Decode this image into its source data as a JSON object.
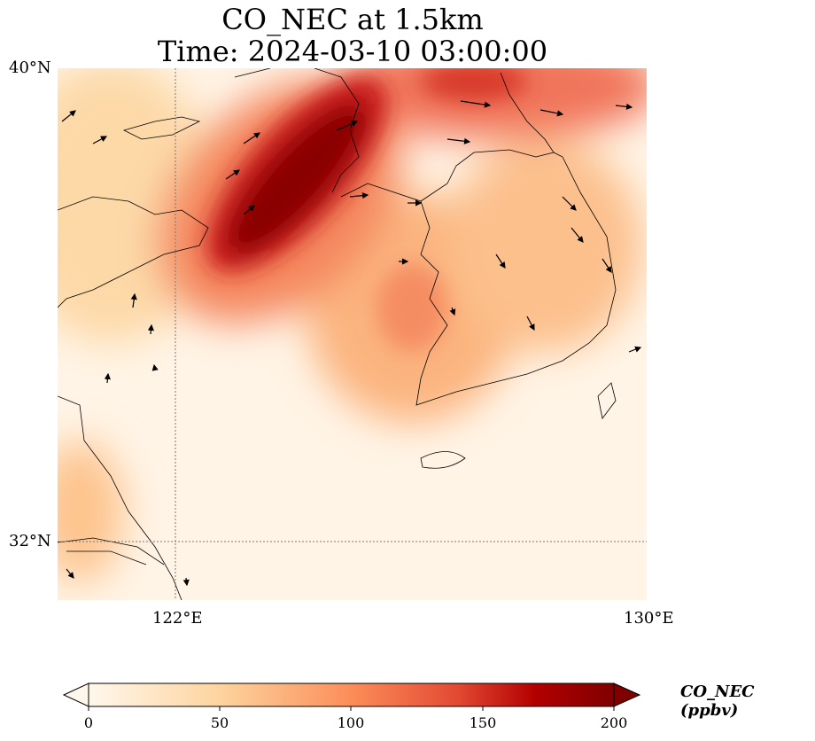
{
  "title": {
    "line1": "CO_NEC at 1.5km",
    "line2": "Time: 2024-03-10 03:00:00"
  },
  "map": {
    "lat_ticks": [
      "40°N",
      "32°N"
    ],
    "lon_ticks": [
      "122°E",
      "130°E"
    ],
    "extent": {
      "lon": [
        120,
        130
      ],
      "lat": [
        31,
        40
      ]
    }
  },
  "colorbar": {
    "label": "CO_NEC (ppbv)",
    "ticks": [
      "0",
      "50",
      "100",
      "150",
      "200"
    ],
    "range": [
      0,
      200
    ],
    "extend": "both",
    "colors": [
      "#fff7ec",
      "#fdd49e",
      "#fc8d59",
      "#d7301f",
      "#b30000",
      "#7f0000"
    ]
  }
}
